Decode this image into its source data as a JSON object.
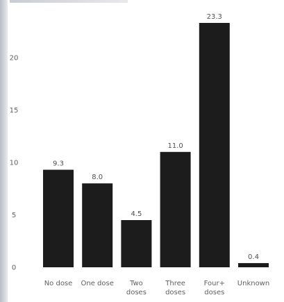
{
  "chart_data": {
    "type": "bar",
    "categories": [
      [
        "No dose"
      ],
      [
        "One dose"
      ],
      [
        "Two",
        "doses"
      ],
      [
        "Three",
        "doses"
      ],
      [
        "Four+",
        "doses"
      ],
      [
        "Unknown"
      ]
    ],
    "values": [
      9.3,
      8.0,
      4.5,
      11.0,
      23.3,
      0.4
    ],
    "value_labels": [
      "9.3",
      "8.0",
      "4.5",
      "11.0",
      "23.3",
      "0.4"
    ],
    "yticks": [
      0,
      5,
      10,
      15,
      20
    ],
    "ylim": [
      0,
      24
    ],
    "grid": false,
    "legend": "none",
    "bar_color": "#1c1c1c"
  }
}
